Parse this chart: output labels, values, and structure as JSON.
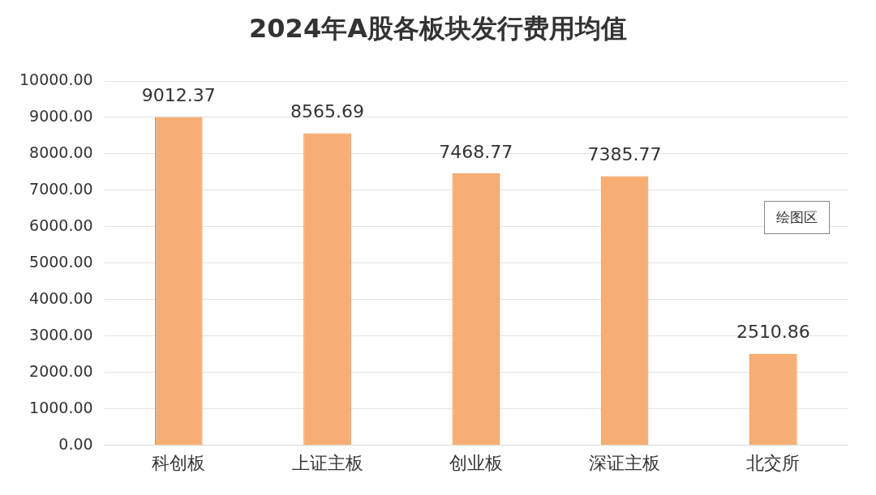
{
  "chart_data": {
    "type": "bar",
    "title": "2024年A股各板块发行费用均值",
    "categories": [
      "科创板",
      "上证主板",
      "创业板",
      "深证主板",
      "北交所"
    ],
    "values": [
      9012.37,
      8565.69,
      7468.77,
      7385.77,
      2510.86
    ],
    "color": "#f7ae74",
    "ylim": [
      0,
      10000
    ],
    "yticks": [
      {
        "value": 0,
        "label": "0.00"
      },
      {
        "value": 1000,
        "label": "1000.00"
      },
      {
        "value": 2000,
        "label": "2000.00"
      },
      {
        "value": 3000,
        "label": "3000.00"
      },
      {
        "value": 4000,
        "label": "4000.00"
      },
      {
        "value": 5000,
        "label": "5000.00"
      },
      {
        "value": 6000,
        "label": "6000.00"
      },
      {
        "value": 7000,
        "label": "7000.00"
      },
      {
        "value": 8000,
        "label": "8000.00"
      },
      {
        "value": 9000,
        "label": "9000.00"
      },
      {
        "value": 10000,
        "label": "10000.00"
      }
    ],
    "grid": "y",
    "data_labels": true,
    "annotations": [
      "绘图区"
    ]
  }
}
